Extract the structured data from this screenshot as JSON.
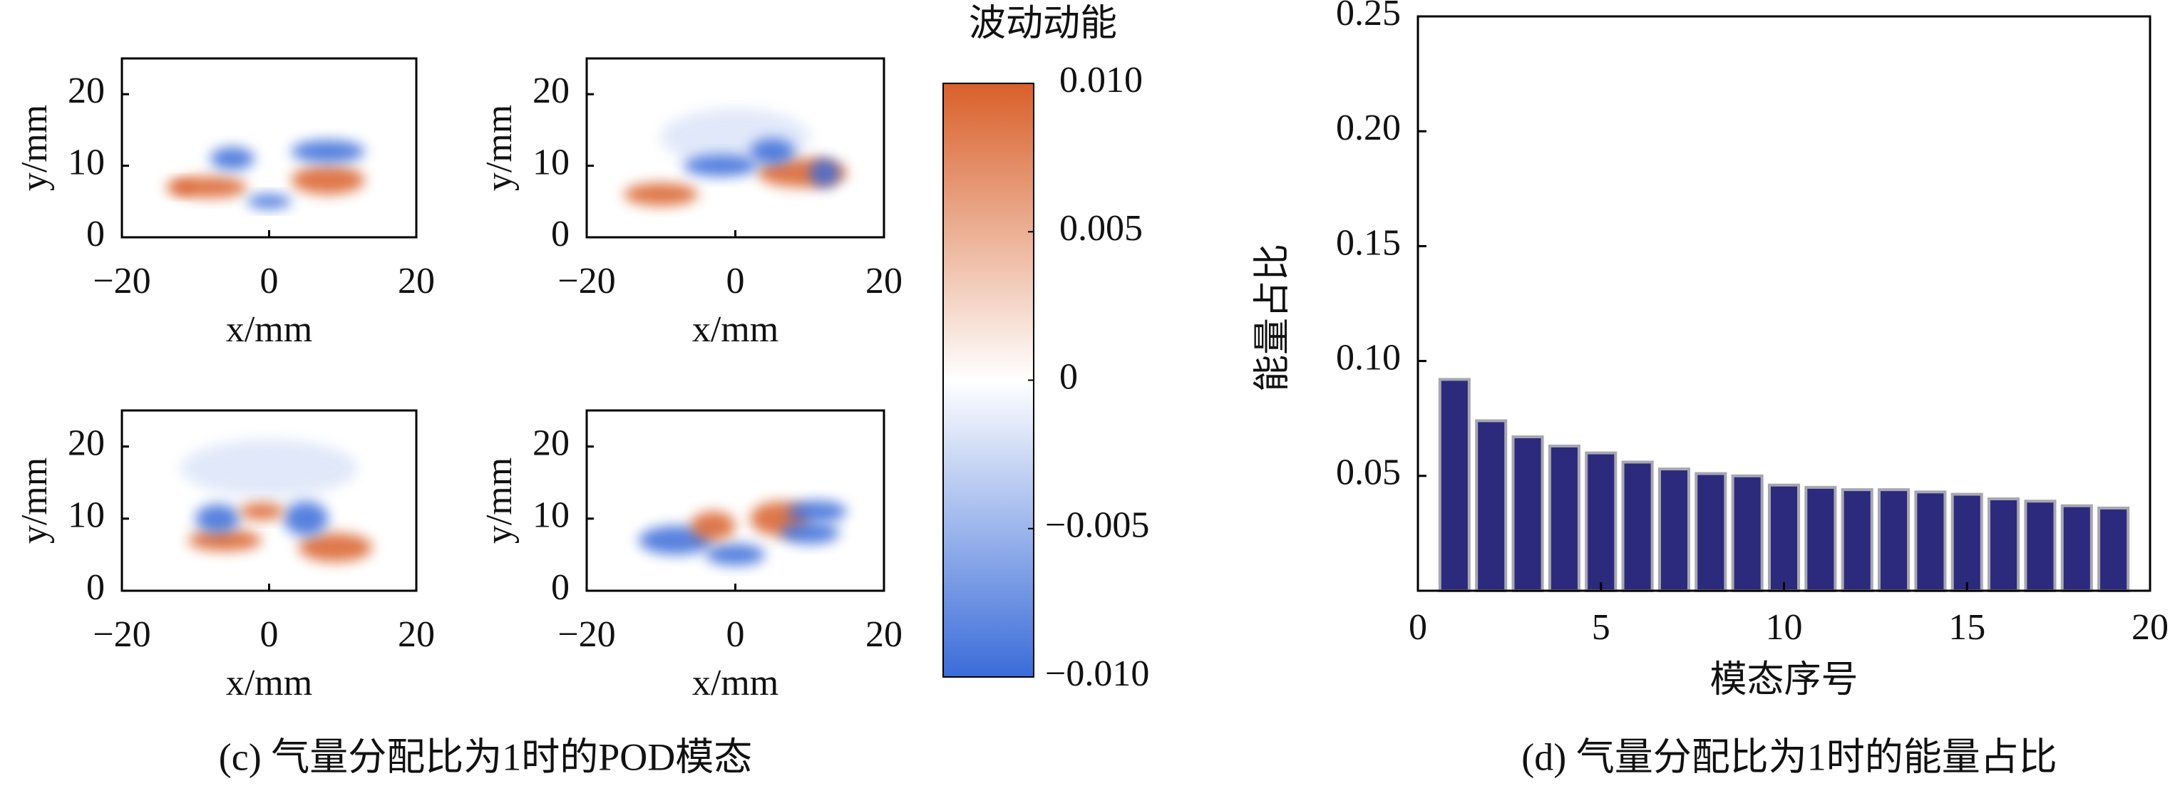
{
  "chart_data": [
    {
      "type": "heatmap",
      "xlabel": "x/mm",
      "ylabel": "y/mm",
      "xlim": [
        -20,
        20
      ],
      "ylim": [
        0,
        25
      ],
      "xticks": [
        {
          "value": -20,
          "label": "−20"
        },
        0,
        20
      ],
      "yticks": [
        0,
        10,
        20
      ]
    },
    {
      "type": "heatmap",
      "xlabel": "x/mm",
      "ylabel": "y/mm",
      "xlim": [
        -20,
        20
      ],
      "ylim": [
        0,
        25
      ],
      "xticks": [
        {
          "value": -20,
          "label": "−20"
        },
        0,
        20
      ],
      "yticks": [
        0,
        10,
        20
      ]
    },
    {
      "type": "heatmap",
      "xlabel": "x/mm",
      "ylabel": "y/mm",
      "xlim": [
        -20,
        20
      ],
      "ylim": [
        0,
        25
      ],
      "xticks": [
        {
          "value": -20,
          "label": "−20"
        },
        0,
        20
      ],
      "yticks": [
        0,
        10,
        20
      ]
    },
    {
      "type": "heatmap",
      "xlabel": "x/mm",
      "ylabel": "y/mm",
      "xlim": [
        -20,
        20
      ],
      "ylim": [
        0,
        25
      ],
      "xticks": [
        {
          "value": -20,
          "label": "−20"
        },
        0,
        20
      ],
      "yticks": [
        0,
        10,
        20
      ]
    },
    {
      "type": "colorbar",
      "title": "波动动能",
      "lim": [
        -0.01,
        0.01
      ],
      "colors": [
        "#3a6cd9",
        "#ffffff",
        "#d9602a"
      ],
      "ticks": [
        {
          "value": 0.01,
          "label": "0.010"
        },
        0.005,
        0,
        {
          "value": -0.005,
          "label": "−0.005"
        },
        {
          "value": -0.01,
          "label": "−0.010"
        }
      ]
    },
    {
      "type": "bar",
      "xlabel": "模态序号",
      "ylabel": "能量占比",
      "color": "#2c2a7c",
      "x": [
        1,
        2,
        3,
        4,
        5,
        6,
        7,
        8,
        9,
        10,
        11,
        12,
        13,
        14,
        15,
        16,
        17,
        18,
        19
      ],
      "values": [
        0.092,
        0.074,
        0.067,
        0.063,
        0.06,
        0.056,
        0.053,
        0.051,
        0.05,
        0.046,
        0.045,
        0.044,
        0.044,
        0.043,
        0.042,
        0.04,
        0.039,
        0.037,
        0.036
      ],
      "xlim": [
        0,
        20
      ],
      "ylim": [
        0,
        0.25
      ],
      "xticks": [
        0,
        5,
        10,
        15,
        20
      ],
      "yticks": [
        0.05,
        {
          "value": 0.1,
          "label": "0.10"
        },
        0.15,
        {
          "value": 0.2,
          "label": "0.20"
        },
        0.25
      ]
    }
  ],
  "captions": [
    "(c) 气量分配比为1时的POD模态",
    "(d) 气量分配比为1时的能量占比"
  ]
}
